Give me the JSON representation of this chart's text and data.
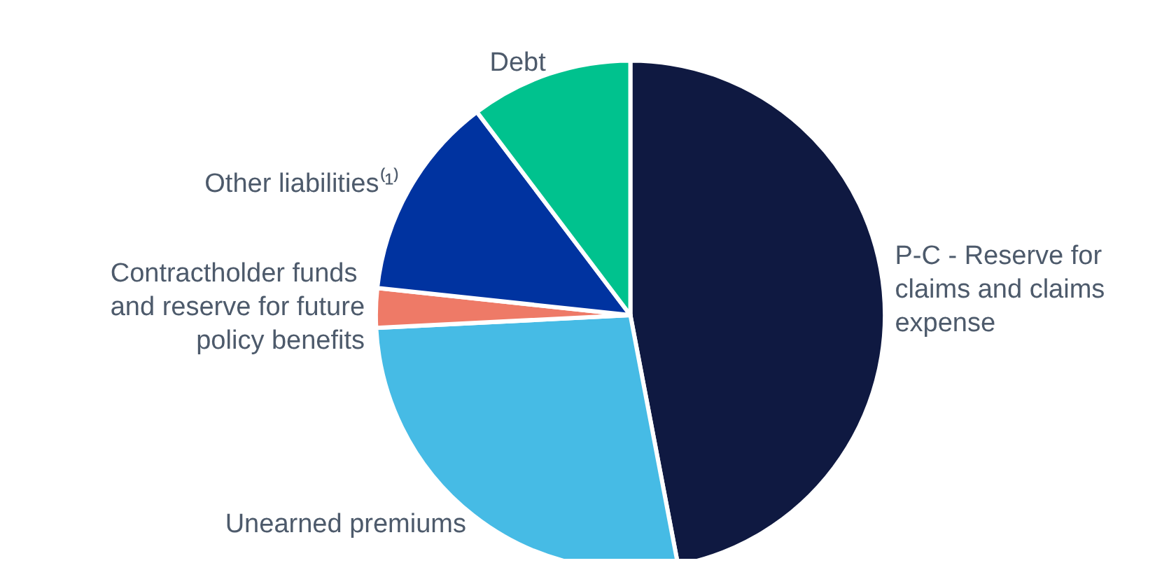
{
  "chart_data": {
    "type": "pie",
    "categories": [
      "P-C - Reserve for claims and claims expense",
      "Unearned premiums",
      "Contractholder funds and reserve for future policy benefits",
      "Other liabilities⁽¹⁾",
      "Debt"
    ],
    "values": [
      47,
      27.2,
      2.5,
      13,
      10.3
    ],
    "colors": [
      "#0f1941",
      "#46bbe5",
      "#ee7a67",
      "#0033a0",
      "#00c28e"
    ],
    "legend": false
  }
}
